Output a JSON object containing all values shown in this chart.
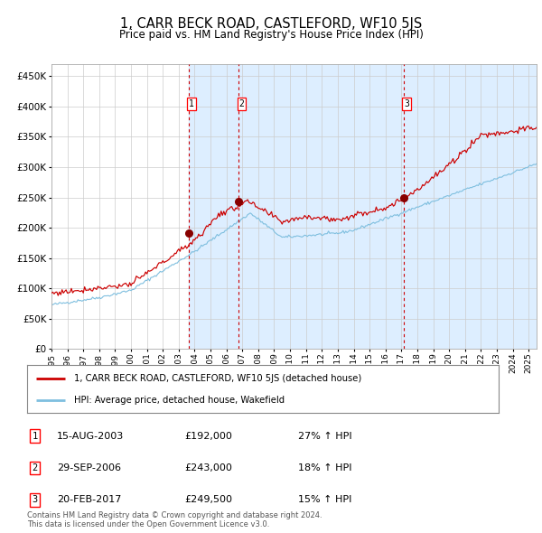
{
  "title": "1, CARR BECK ROAD, CASTLEFORD, WF10 5JS",
  "subtitle": "Price paid vs. HM Land Registry's House Price Index (HPI)",
  "title_fontsize": 10.5,
  "subtitle_fontsize": 8.5,
  "ylim": [
    0,
    470000
  ],
  "yticks": [
    0,
    50000,
    100000,
    150000,
    200000,
    250000,
    300000,
    350000,
    400000,
    450000
  ],
  "sale_dates_num": [
    2003.62,
    2006.75,
    2017.13
  ],
  "sale_prices": [
    192000,
    243000,
    249500
  ],
  "sale_labels": [
    "1",
    "2",
    "3"
  ],
  "hpi_color": "#7fbfdf",
  "price_color": "#cc0000",
  "sale_marker_color": "#880000",
  "dashed_line_color": "#cc0000",
  "shade_color": "#ddeeff",
  "background_color": "#ffffff",
  "grid_color": "#cccccc",
  "legend_line1": "1, CARR BECK ROAD, CASTLEFORD, WF10 5JS (detached house)",
  "legend_line2": "HPI: Average price, detached house, Wakefield",
  "table_rows": [
    [
      "1",
      "15-AUG-2003",
      "£192,000",
      "27% ↑ HPI"
    ],
    [
      "2",
      "29-SEP-2006",
      "£243,000",
      "18% ↑ HPI"
    ],
    [
      "3",
      "20-FEB-2017",
      "£249,500",
      "15% ↑ HPI"
    ]
  ],
  "footer": "Contains HM Land Registry data © Crown copyright and database right 2024.\nThis data is licensed under the Open Government Licence v3.0.",
  "xstart": 1995.0,
  "xend": 2025.5
}
